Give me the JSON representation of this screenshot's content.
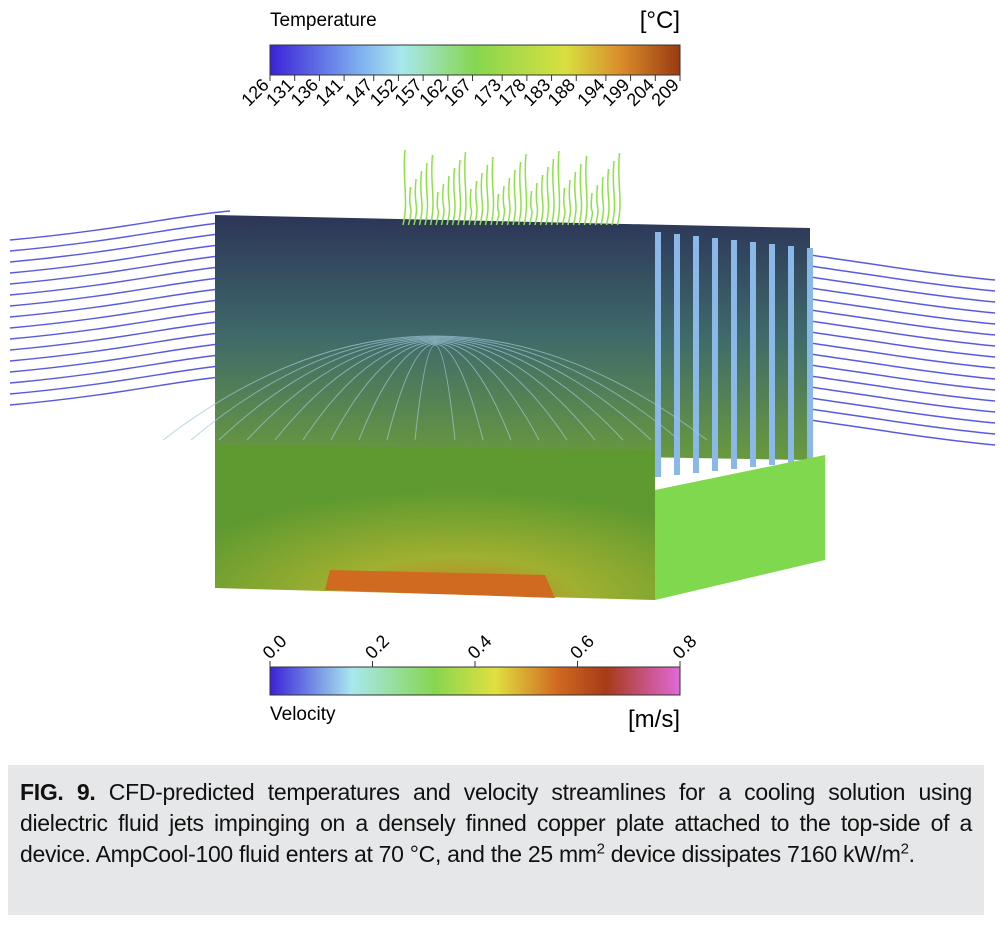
{
  "figure": {
    "temperature_colorbar": {
      "title": "Temperature",
      "unit": "[°C]",
      "lim": [
        126,
        209
      ],
      "ticks": [
        126,
        131,
        136,
        141,
        147,
        152,
        157,
        162,
        167,
        173,
        178,
        183,
        188,
        194,
        199,
        204,
        209
      ]
    },
    "velocity_colorbar": {
      "title": "Velocity",
      "unit": "[m/s]",
      "lim": [
        0,
        0.8
      ],
      "ticks": [
        {
          "value": 0,
          "label": "0.0"
        },
        0.2,
        0.4,
        0.6,
        0.8
      ]
    }
  },
  "caption": {
    "label": "FIG. 9.",
    "parts": [
      " CFD-predicted temperatures and velocity streamlines for a cooling solution using dielectric fluid jets impinging on a densely finned copper plate attached to the top-side of a device. AmpCool-100 fluid enters at 70 °C, and the 25 mm",
      "2",
      " device dissipates 7160 kW/m",
      "2",
      "."
    ]
  }
}
